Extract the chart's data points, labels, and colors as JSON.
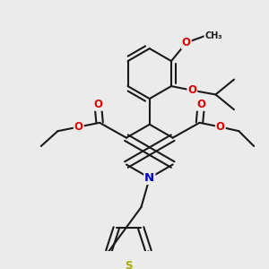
{
  "bg_color": "#ebebeb",
  "bond_color": "#1a1a1a",
  "bond_width": 1.5,
  "atom_colors": {
    "O": "#dd0000",
    "N": "#0000cc",
    "S": "#aaaa00",
    "C": "#1a1a1a"
  },
  "font_size_atom": 8.5,
  "font_size_label": 7.0
}
